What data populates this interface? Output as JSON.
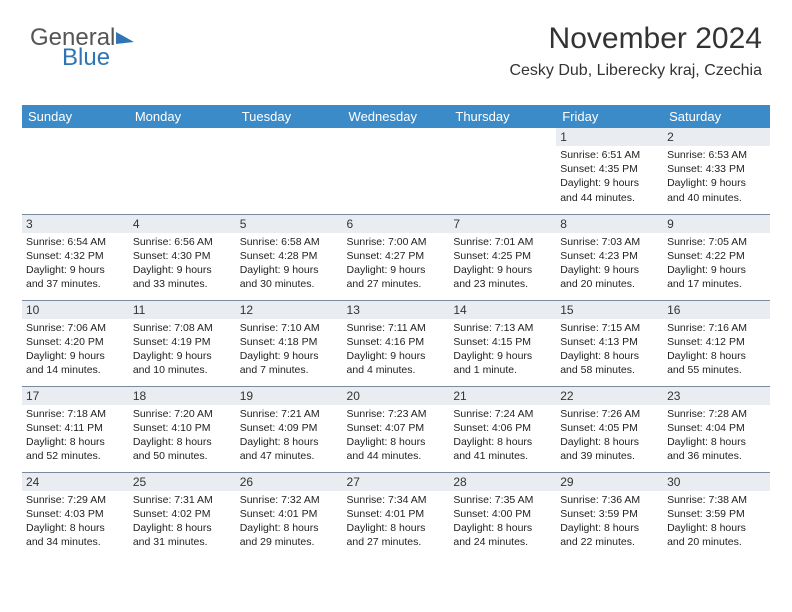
{
  "logo": {
    "part1": "General",
    "part2": "Blue"
  },
  "title": "November 2024",
  "subtitle": "Cesky Dub, Liberecky kraj, Czechia",
  "colors": {
    "header_bg": "#3b8bc9",
    "header_text": "#ffffff",
    "daybar_bg": "#e9edf2",
    "border": "#7a8aa0",
    "logo_blue": "#2f75b5",
    "text": "#333333"
  },
  "columns": [
    "Sunday",
    "Monday",
    "Tuesday",
    "Wednesday",
    "Thursday",
    "Friday",
    "Saturday"
  ],
  "weeks": [
    [
      {
        "day": "",
        "lines": []
      },
      {
        "day": "",
        "lines": []
      },
      {
        "day": "",
        "lines": []
      },
      {
        "day": "",
        "lines": []
      },
      {
        "day": "",
        "lines": []
      },
      {
        "day": "1",
        "lines": [
          "Sunrise: 6:51 AM",
          "Sunset: 4:35 PM",
          "Daylight: 9 hours and 44 minutes."
        ]
      },
      {
        "day": "2",
        "lines": [
          "Sunrise: 6:53 AM",
          "Sunset: 4:33 PM",
          "Daylight: 9 hours and 40 minutes."
        ]
      }
    ],
    [
      {
        "day": "3",
        "lines": [
          "Sunrise: 6:54 AM",
          "Sunset: 4:32 PM",
          "Daylight: 9 hours and 37 minutes."
        ]
      },
      {
        "day": "4",
        "lines": [
          "Sunrise: 6:56 AM",
          "Sunset: 4:30 PM",
          "Daylight: 9 hours and 33 minutes."
        ]
      },
      {
        "day": "5",
        "lines": [
          "Sunrise: 6:58 AM",
          "Sunset: 4:28 PM",
          "Daylight: 9 hours and 30 minutes."
        ]
      },
      {
        "day": "6",
        "lines": [
          "Sunrise: 7:00 AM",
          "Sunset: 4:27 PM",
          "Daylight: 9 hours and 27 minutes."
        ]
      },
      {
        "day": "7",
        "lines": [
          "Sunrise: 7:01 AM",
          "Sunset: 4:25 PM",
          "Daylight: 9 hours and 23 minutes."
        ]
      },
      {
        "day": "8",
        "lines": [
          "Sunrise: 7:03 AM",
          "Sunset: 4:23 PM",
          "Daylight: 9 hours and 20 minutes."
        ]
      },
      {
        "day": "9",
        "lines": [
          "Sunrise: 7:05 AM",
          "Sunset: 4:22 PM",
          "Daylight: 9 hours and 17 minutes."
        ]
      }
    ],
    [
      {
        "day": "10",
        "lines": [
          "Sunrise: 7:06 AM",
          "Sunset: 4:20 PM",
          "Daylight: 9 hours and 14 minutes."
        ]
      },
      {
        "day": "11",
        "lines": [
          "Sunrise: 7:08 AM",
          "Sunset: 4:19 PM",
          "Daylight: 9 hours and 10 minutes."
        ]
      },
      {
        "day": "12",
        "lines": [
          "Sunrise: 7:10 AM",
          "Sunset: 4:18 PM",
          "Daylight: 9 hours and 7 minutes."
        ]
      },
      {
        "day": "13",
        "lines": [
          "Sunrise: 7:11 AM",
          "Sunset: 4:16 PM",
          "Daylight: 9 hours and 4 minutes."
        ]
      },
      {
        "day": "14",
        "lines": [
          "Sunrise: 7:13 AM",
          "Sunset: 4:15 PM",
          "Daylight: 9 hours and 1 minute."
        ]
      },
      {
        "day": "15",
        "lines": [
          "Sunrise: 7:15 AM",
          "Sunset: 4:13 PM",
          "Daylight: 8 hours and 58 minutes."
        ]
      },
      {
        "day": "16",
        "lines": [
          "Sunrise: 7:16 AM",
          "Sunset: 4:12 PM",
          "Daylight: 8 hours and 55 minutes."
        ]
      }
    ],
    [
      {
        "day": "17",
        "lines": [
          "Sunrise: 7:18 AM",
          "Sunset: 4:11 PM",
          "Daylight: 8 hours and 52 minutes."
        ]
      },
      {
        "day": "18",
        "lines": [
          "Sunrise: 7:20 AM",
          "Sunset: 4:10 PM",
          "Daylight: 8 hours and 50 minutes."
        ]
      },
      {
        "day": "19",
        "lines": [
          "Sunrise: 7:21 AM",
          "Sunset: 4:09 PM",
          "Daylight: 8 hours and 47 minutes."
        ]
      },
      {
        "day": "20",
        "lines": [
          "Sunrise: 7:23 AM",
          "Sunset: 4:07 PM",
          "Daylight: 8 hours and 44 minutes."
        ]
      },
      {
        "day": "21",
        "lines": [
          "Sunrise: 7:24 AM",
          "Sunset: 4:06 PM",
          "Daylight: 8 hours and 41 minutes."
        ]
      },
      {
        "day": "22",
        "lines": [
          "Sunrise: 7:26 AM",
          "Sunset: 4:05 PM",
          "Daylight: 8 hours and 39 minutes."
        ]
      },
      {
        "day": "23",
        "lines": [
          "Sunrise: 7:28 AM",
          "Sunset: 4:04 PM",
          "Daylight: 8 hours and 36 minutes."
        ]
      }
    ],
    [
      {
        "day": "24",
        "lines": [
          "Sunrise: 7:29 AM",
          "Sunset: 4:03 PM",
          "Daylight: 8 hours and 34 minutes."
        ]
      },
      {
        "day": "25",
        "lines": [
          "Sunrise: 7:31 AM",
          "Sunset: 4:02 PM",
          "Daylight: 8 hours and 31 minutes."
        ]
      },
      {
        "day": "26",
        "lines": [
          "Sunrise: 7:32 AM",
          "Sunset: 4:01 PM",
          "Daylight: 8 hours and 29 minutes."
        ]
      },
      {
        "day": "27",
        "lines": [
          "Sunrise: 7:34 AM",
          "Sunset: 4:01 PM",
          "Daylight: 8 hours and 27 minutes."
        ]
      },
      {
        "day": "28",
        "lines": [
          "Sunrise: 7:35 AM",
          "Sunset: 4:00 PM",
          "Daylight: 8 hours and 24 minutes."
        ]
      },
      {
        "day": "29",
        "lines": [
          "Sunrise: 7:36 AM",
          "Sunset: 3:59 PM",
          "Daylight: 8 hours and 22 minutes."
        ]
      },
      {
        "day": "30",
        "lines": [
          "Sunrise: 7:38 AM",
          "Sunset: 3:59 PM",
          "Daylight: 8 hours and 20 minutes."
        ]
      }
    ]
  ]
}
